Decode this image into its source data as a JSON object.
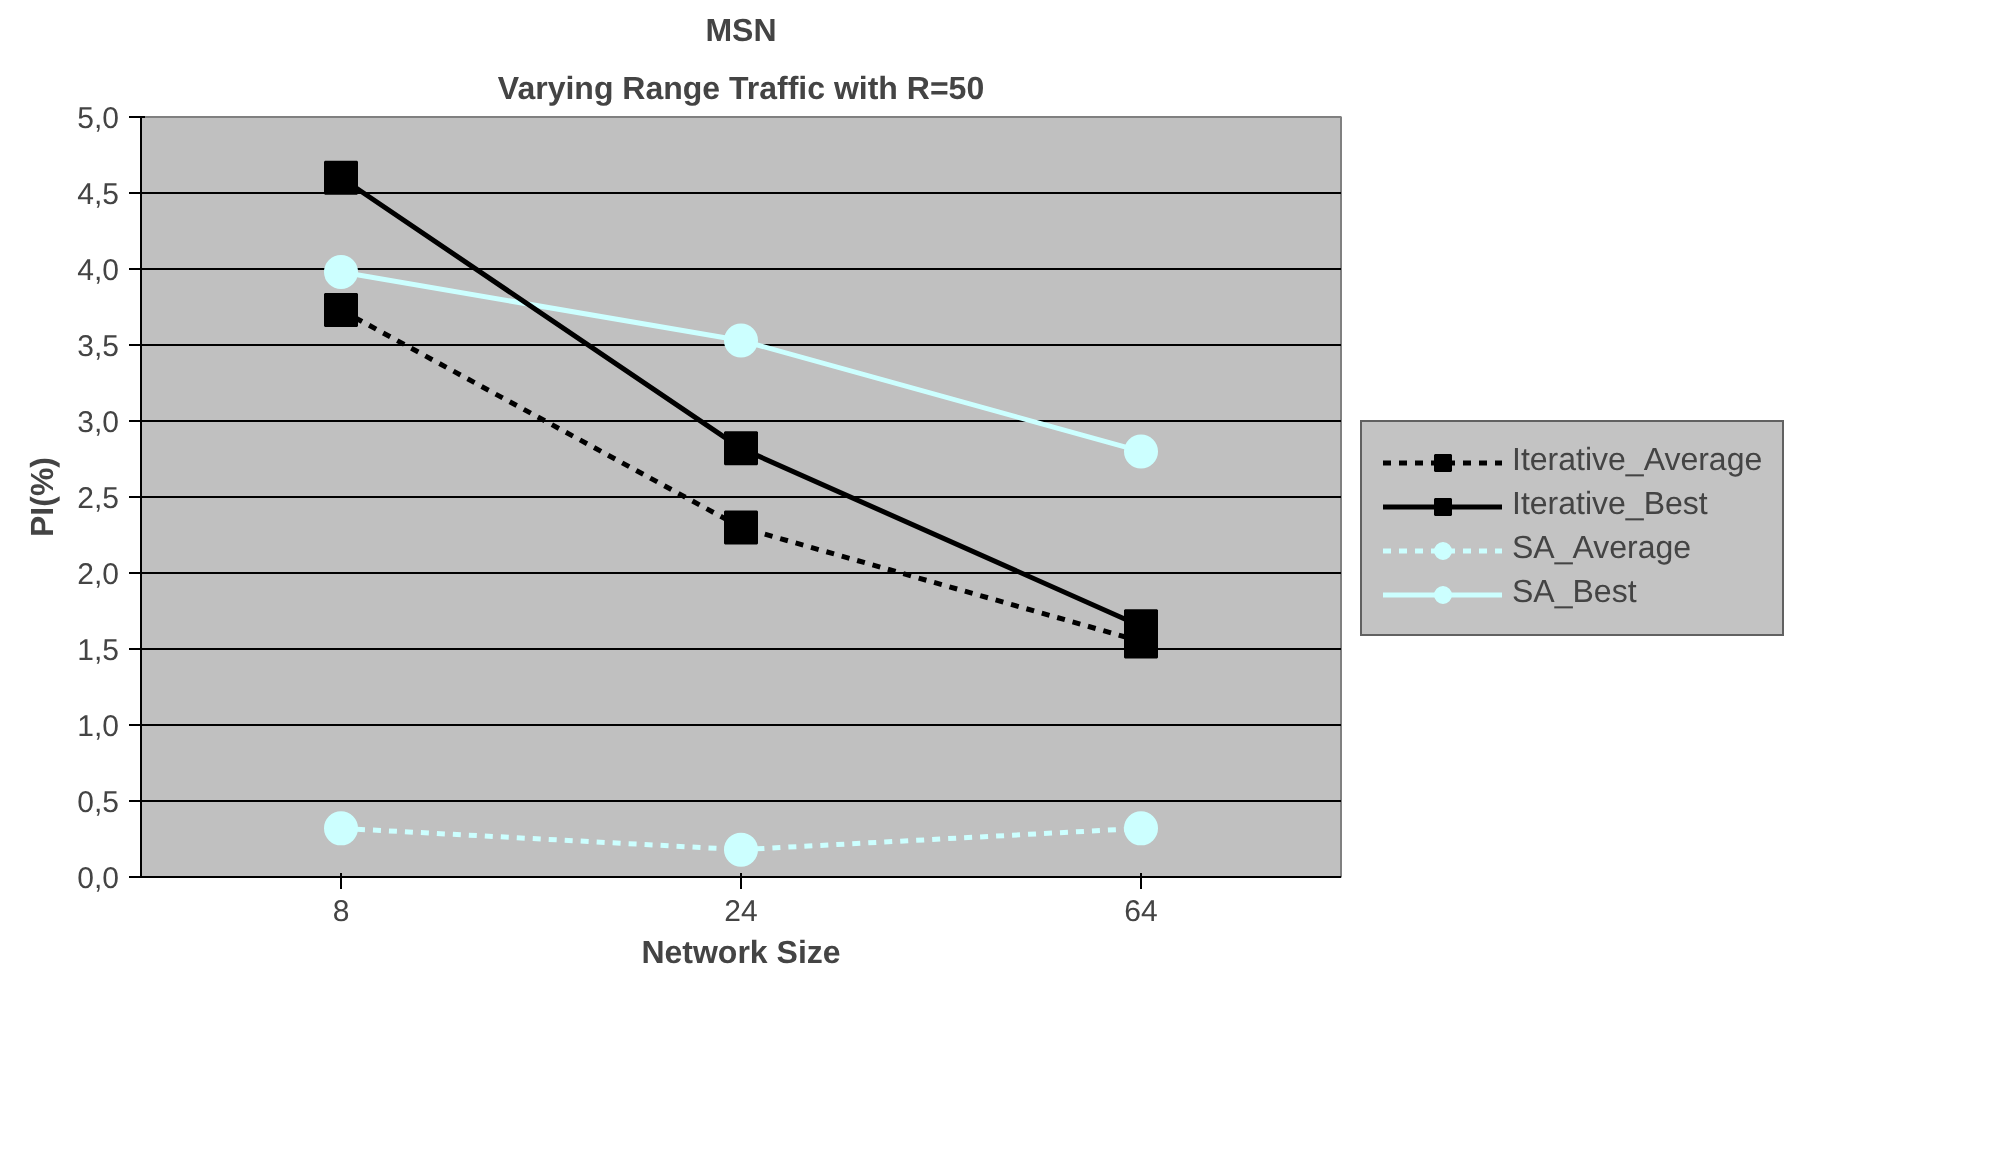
{
  "chart_data": {
    "type": "line",
    "title": "MSN",
    "subtitle": "Varying Range Traffic with R=50",
    "xlabel": "Network Size",
    "ylabel": "PI(%)",
    "categories": [
      "8",
      "24",
      "64"
    ],
    "series": [
      {
        "name": "Iterative_Average",
        "color": "#000000",
        "values": [
          3.73,
          2.3,
          1.55
        ],
        "marker": "square",
        "line_style": "dashed"
      },
      {
        "name": "Iterative_Best",
        "color": "#000000",
        "values": [
          4.6,
          2.82,
          1.65
        ],
        "marker": "square",
        "line_style": "solid"
      },
      {
        "name": "SA_Average",
        "color": "#ccffff",
        "values": [
          0.32,
          0.18,
          0.32
        ],
        "marker": "circle",
        "line_style": "dashed"
      },
      {
        "name": "SA_Best",
        "color": "#ccffff",
        "values": [
          3.98,
          3.53,
          2.8
        ],
        "marker": "circle",
        "line_style": "solid"
      }
    ],
    "ylim": [
      0,
      5
    ],
    "yticks": [
      {
        "value": 0,
        "label": "0,0"
      },
      {
        "value": 0.5,
        "label": "0,5"
      },
      {
        "value": 1,
        "label": "1,0"
      },
      {
        "value": 1.5,
        "label": "1,5"
      },
      {
        "value": 2,
        "label": "2,0"
      },
      {
        "value": 2.5,
        "label": "2,5"
      },
      {
        "value": 3,
        "label": "3,0"
      },
      {
        "value": 3.5,
        "label": "3,5"
      },
      {
        "value": 4,
        "label": "4,0"
      },
      {
        "value": 4.5,
        "label": "4,5"
      },
      {
        "value": 5,
        "label": "5,0"
      }
    ],
    "grid": "y",
    "legend": "right"
  }
}
